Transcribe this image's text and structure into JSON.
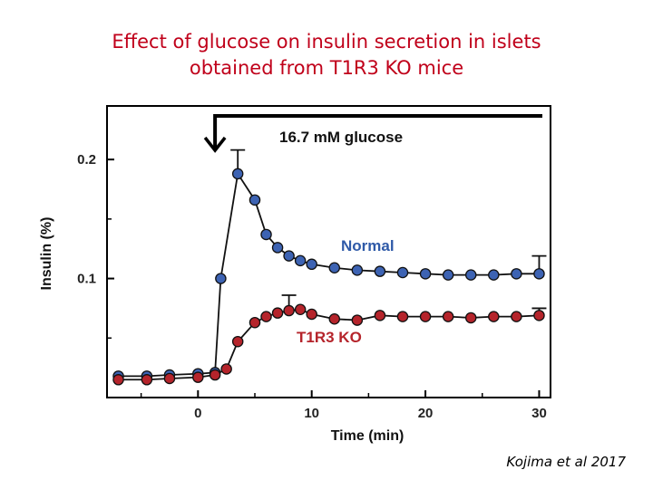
{
  "slide": {
    "title_line1": "Effect of glucose on insulin secretion in islets",
    "title_line2": "obtained from T1R3 KO mice",
    "citation": "Kojima et al 2017"
  },
  "chart_data": {
    "type": "line",
    "title": "",
    "xlabel": "Time (min)",
    "ylabel": "Insulin (%)",
    "xlim": [
      -8,
      31
    ],
    "ylim": [
      0.0,
      0.245
    ],
    "x_ticks": [
      0,
      10,
      20,
      30
    ],
    "y_ticks": [
      0.1,
      0.2
    ],
    "y_tick_labels": [
      "0.1",
      "0.2"
    ],
    "annotation": "16.7 mM glucose",
    "glucose_start": 1.5,
    "grid": false,
    "series": [
      {
        "name": "Normal",
        "color": "#3d63b3",
        "x": [
          -7,
          -4.5,
          -2.5,
          0,
          1.5,
          2,
          3.5,
          5,
          6,
          7,
          8,
          9,
          10,
          12,
          14,
          16,
          18,
          20,
          22,
          24,
          26,
          28,
          30
        ],
        "y": [
          0.018,
          0.018,
          0.019,
          0.02,
          0.021,
          0.1,
          0.188,
          0.166,
          0.137,
          0.126,
          0.119,
          0.115,
          0.112,
          0.109,
          0.107,
          0.106,
          0.105,
          0.104,
          0.103,
          0.103,
          0.103,
          0.104,
          0.104
        ],
        "error_bars": {
          "x": [
            3.5,
            30
          ],
          "err": [
            0.02,
            0.015
          ]
        }
      },
      {
        "name": "T1R3 KO",
        "color": "#b5242b",
        "x": [
          -7,
          -4.5,
          -2.5,
          0,
          1.5,
          2.5,
          3.5,
          5,
          6,
          7,
          8,
          9,
          10,
          12,
          14,
          16,
          18,
          20,
          22,
          24,
          26,
          28,
          30
        ],
        "y": [
          0.015,
          0.015,
          0.016,
          0.017,
          0.019,
          0.024,
          0.047,
          0.063,
          0.068,
          0.071,
          0.073,
          0.074,
          0.07,
          0.066,
          0.065,
          0.069,
          0.068,
          0.068,
          0.068,
          0.067,
          0.068,
          0.068,
          0.069
        ],
        "error_bars": {
          "x": [
            8,
            30
          ],
          "err": [
            0.013,
            0.006
          ]
        }
      }
    ]
  }
}
